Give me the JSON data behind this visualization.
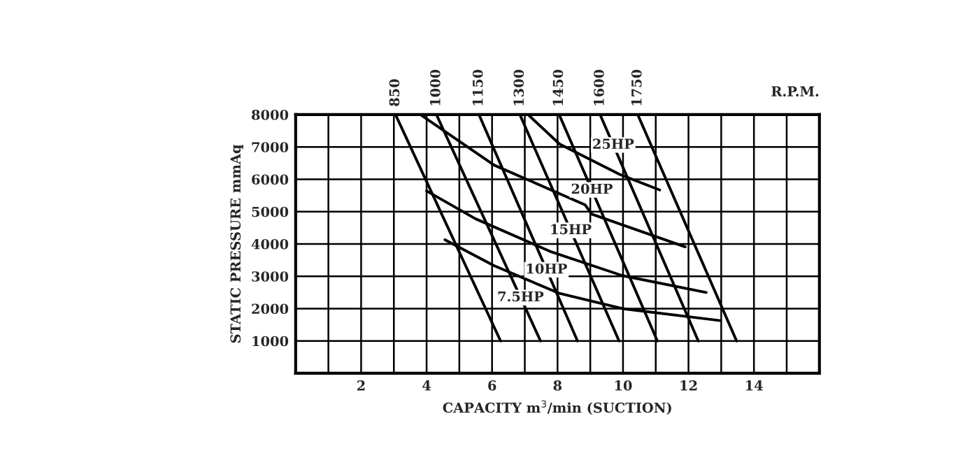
{
  "chart_data": {
    "type": "line",
    "xlabel": "CAPACITY m$^{3}$/min (SUCTION)",
    "ylabel": "STATIC PRESSURE mmAq",
    "xlim": [
      0,
      16
    ],
    "ylim": [
      0,
      8000
    ],
    "xticks": [
      {
        "value": 1,
        "label": null
      },
      2,
      {
        "value": 3,
        "label": null
      },
      4,
      {
        "value": 5,
        "label": null
      },
      6,
      {
        "value": 7,
        "label": null
      },
      8,
      {
        "value": 9,
        "label": null
      },
      10,
      {
        "value": 11,
        "label": null
      },
      12,
      {
        "value": 13,
        "label": null
      },
      14,
      {
        "value": 15,
        "label": null
      }
    ],
    "yticks": [
      1000,
      2000,
      3000,
      4000,
      5000,
      6000,
      7000,
      8000
    ],
    "grid": true,
    "marker": "none",
    "line_style": "solid",
    "series": [
      {
        "color": "#000000",
        "x": [
          7.1,
          8.06,
          9.9,
          11.12
        ],
        "values": [
          8000,
          7090,
          6150,
          5670
        ]
      },
      {
        "color": "#000000",
        "x": [
          3.81,
          6.06,
          8.84,
          9.05,
          11.9
        ],
        "values": [
          8000,
          6440,
          5210,
          4920,
          3910
        ]
      },
      {
        "color": "#000000",
        "x": [
          4.0,
          5.49,
          7.77,
          9.98,
          12.54
        ],
        "values": [
          5640,
          4780,
          3770,
          3020,
          2500
        ]
      },
      {
        "color": "#000000",
        "x": [
          4.56,
          6.06,
          8.06,
          9.98,
          12.97
        ],
        "values": [
          4130,
          3330,
          2470,
          2000,
          1630
        ]
      },
      {
        "color": "#000000",
        "x": [
          3.05,
          6.26
        ],
        "values": [
          8000,
          1000
        ]
      },
      {
        "color": "#000000",
        "x": [
          4.3,
          7.48
        ],
        "values": [
          8000,
          1000
        ]
      },
      {
        "color": "#000000",
        "x": [
          5.6,
          8.61
        ],
        "values": [
          8000,
          1000
        ]
      },
      {
        "color": "#000000",
        "x": [
          6.85,
          9.88
        ],
        "values": [
          8000,
          1000
        ]
      },
      {
        "color": "#000000",
        "x": [
          8.05,
          11.05
        ],
        "values": [
          8000,
          1000
        ]
      },
      {
        "color": "#000000",
        "x": [
          9.3,
          12.3
        ],
        "values": [
          8000,
          1000
        ]
      },
      {
        "color": "#000000",
        "x": [
          10.45,
          13.47
        ],
        "values": [
          8000,
          1000
        ]
      }
    ],
    "annotations": [
      {
        "text": "850",
        "x": 3.05,
        "y": 8000
      },
      {
        "text": "1000",
        "x": 4.3,
        "y": 8000
      },
      {
        "text": "1150",
        "x": 5.6,
        "y": 8000
      },
      {
        "text": "1300",
        "x": 6.85,
        "y": 8000
      },
      {
        "text": "1450",
        "x": 8.05,
        "y": 8000
      },
      {
        "text": "1600",
        "x": 9.3,
        "y": 8000
      },
      {
        "text": "1750",
        "x": 10.45,
        "y": 8000
      },
      "R.P.M.",
      {
        "text": "25HP",
        "x": 9.7,
        "y": 7060
      },
      {
        "text": "20HP",
        "x": 9.05,
        "y": 5670
      },
      {
        "text": "15HP",
        "x": 8.4,
        "y": 4420
      },
      {
        "text": "10HP",
        "x": 7.66,
        "y": 3200
      },
      {
        "text": "7.5HP",
        "x": 6.87,
        "y": 2340
      }
    ]
  }
}
